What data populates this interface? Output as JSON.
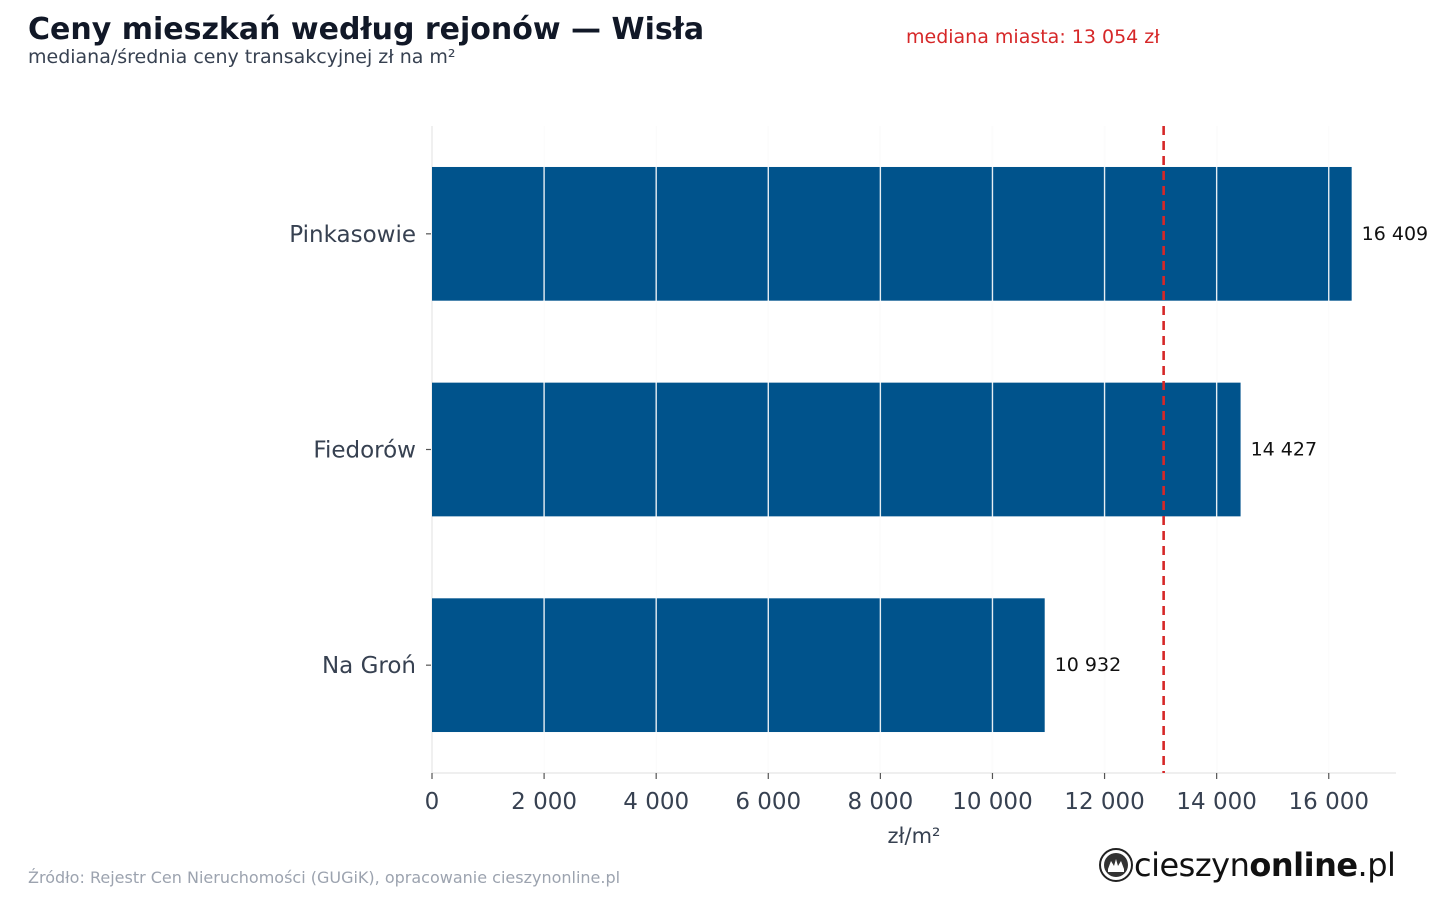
{
  "header": {
    "title": "Ceny mieszkań według rejonów — Wisła",
    "subtitle": "mediana/średnia ceny transakcyjnej zł na m²",
    "median_label": "mediana miasta: 13 054 zł"
  },
  "footer": {
    "source": "Źródło: Rejestr Cen Nieruchomości (GUGiK), opracowanie cieszynonline.pl",
    "brand_regular": "cieszyn",
    "brand_bold": "online",
    "brand_suffix": ".pl"
  },
  "colors": {
    "bar": "#00538c",
    "median_line": "#d62728",
    "grid": "#e5e5e5",
    "axis_text": "#374151"
  },
  "chart_data": {
    "type": "bar",
    "orientation": "horizontal",
    "title": "Ceny mieszkań według rejonów — Wisła",
    "subtitle": "mediana/średnia ceny transakcyjnej zł na m²",
    "xlabel": "zł/m²",
    "ylabel": "",
    "categories": [
      "Pinkasowie",
      "Fiedorów",
      "Na Groń"
    ],
    "values": [
      16409,
      14427,
      10932
    ],
    "value_labels": [
      "16 409",
      "14 427",
      "10 932"
    ],
    "xlim": [
      0,
      17200
    ],
    "xticks": [
      0,
      2000,
      4000,
      6000,
      8000,
      10000,
      12000,
      14000,
      16000
    ],
    "xtick_labels": [
      "0",
      "2 000",
      "4 000",
      "6 000",
      "8 000",
      "10 000",
      "12 000",
      "14 000",
      "16 000"
    ],
    "reference_line": {
      "value": 13054,
      "label": "mediana miasta: 13 054 zł",
      "style": "dashed"
    },
    "grid": {
      "x": true,
      "y": false
    },
    "legend": "none"
  }
}
